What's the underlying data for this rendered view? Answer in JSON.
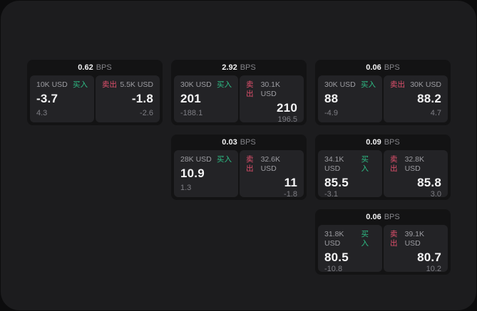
{
  "theme": {
    "buy_green": "#2ebd85",
    "sell_red": "#e0506c",
    "surface_bg": "#1c1c1e",
    "card_bg": "#131314",
    "panel_bg": "#232326"
  },
  "cards": [
    {
      "bps": "0.62",
      "bps_unit": "BPS",
      "buy_amount": "10K USD",
      "buy_label": "买入",
      "buy_value": "-3.7",
      "buy_sub": "4.3",
      "sell_label": "卖出",
      "sell_amount": "5.5K USD",
      "sell_value": "-1.8",
      "sell_sub": "-2.6"
    },
    {
      "bps": "2.92",
      "bps_unit": "BPS",
      "buy_amount": "30K USD",
      "buy_label": "买入",
      "buy_value": "201",
      "buy_sub": "-188.1",
      "sell_label": "卖出",
      "sell_amount": "30.1K USD",
      "sell_value": "210",
      "sell_sub": "196.5"
    },
    {
      "bps": "0.06",
      "bps_unit": "BPS",
      "buy_amount": "30K USD",
      "buy_label": "买入",
      "buy_value": "88",
      "buy_sub": "-4.9",
      "sell_label": "卖出",
      "sell_amount": "30K USD",
      "sell_value": "88.2",
      "sell_sub": "4.7"
    },
    {
      "bps": "0.03",
      "bps_unit": "BPS",
      "buy_amount": "28K USD",
      "buy_label": "买入",
      "buy_value": "10.9",
      "buy_sub": "1.3",
      "sell_label": "卖出",
      "sell_amount": "32.6K USD",
      "sell_value": "11",
      "sell_sub": "-1.8"
    },
    {
      "bps": "0.09",
      "bps_unit": "BPS",
      "buy_amount": "34.1K USD",
      "buy_label": "买入",
      "buy_value": "85.5",
      "buy_sub": "-3.1",
      "sell_label": "卖出",
      "sell_amount": "32.8K USD",
      "sell_value": "85.8",
      "sell_sub": "3.0"
    },
    {
      "bps": "0.06",
      "bps_unit": "BPS",
      "buy_amount": "31.8K USD",
      "buy_label": "买入",
      "buy_value": "80.5",
      "buy_sub": "-10.8",
      "sell_label": "卖出",
      "sell_amount": "39.1K USD",
      "sell_value": "80.7",
      "sell_sub": "10.2"
    }
  ]
}
